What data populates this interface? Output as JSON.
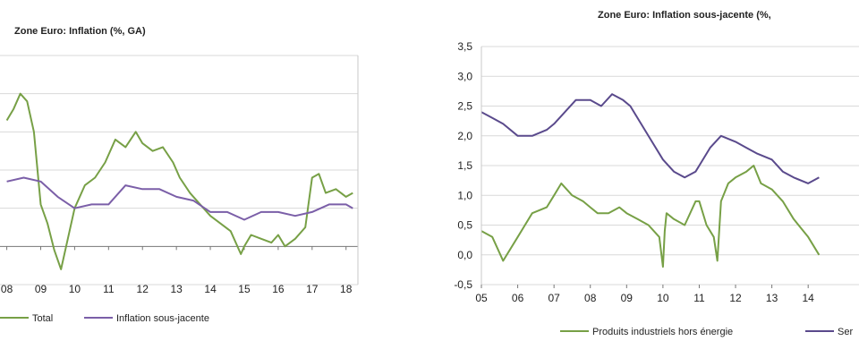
{
  "chart_data": [
    {
      "type": "line",
      "title": "Zone Euro: Inflation (%, GA)",
      "x_tick_labels": [
        "08",
        "09",
        "10",
        "11",
        "12",
        "13",
        "14",
        "15",
        "16",
        "17",
        "18"
      ],
      "ylim": [
        -1,
        5
      ],
      "grid": true,
      "legend_position": "bottom",
      "series": [
        {
          "name": "Total",
          "color": "#77a046",
          "x": [
            2008.0,
            2008.2,
            2008.4,
            2008.6,
            2008.8,
            2009.0,
            2009.2,
            2009.4,
            2009.6,
            2009.8,
            2010.0,
            2010.3,
            2010.6,
            2010.9,
            2011.2,
            2011.5,
            2011.8,
            2012.0,
            2012.3,
            2012.6,
            2012.9,
            2013.1,
            2013.4,
            2013.7,
            2014.0,
            2014.3,
            2014.6,
            2014.9,
            2015.0,
            2015.2,
            2015.5,
            2015.8,
            2016.0,
            2016.2,
            2016.5,
            2016.8,
            2017.0,
            2017.2,
            2017.4,
            2017.7,
            2018.0,
            2018.2
          ],
          "values": [
            3.3,
            3.6,
            4.0,
            3.8,
            3.0,
            1.1,
            0.6,
            -0.1,
            -0.6,
            0.2,
            1.0,
            1.6,
            1.8,
            2.2,
            2.8,
            2.6,
            3.0,
            2.7,
            2.5,
            2.6,
            2.2,
            1.8,
            1.4,
            1.1,
            0.8,
            0.6,
            0.4,
            -0.2,
            0.0,
            0.3,
            0.2,
            0.1,
            0.3,
            0.0,
            0.2,
            0.5,
            1.8,
            1.9,
            1.4,
            1.5,
            1.3,
            1.4
          ]
        },
        {
          "name": "Inflation sous-jacente",
          "color": "#7b5fa8",
          "x": [
            2008.0,
            2008.5,
            2009.0,
            2009.5,
            2010.0,
            2010.5,
            2011.0,
            2011.5,
            2012.0,
            2012.5,
            2013.0,
            2013.5,
            2014.0,
            2014.5,
            2015.0,
            2015.5,
            2016.0,
            2016.5,
            2017.0,
            2017.5,
            2018.0,
            2018.2
          ],
          "values": [
            1.7,
            1.8,
            1.7,
            1.3,
            1.0,
            1.1,
            1.1,
            1.6,
            1.5,
            1.5,
            1.3,
            1.2,
            0.9,
            0.9,
            0.7,
            0.9,
            0.9,
            0.8,
            0.9,
            1.1,
            1.1,
            1.0
          ]
        }
      ]
    },
    {
      "type": "line",
      "title": "Zone Euro: Inflation sous-jacente (%,",
      "x_tick_labels": [
        "05",
        "06",
        "07",
        "08",
        "09",
        "10",
        "11",
        "12",
        "13",
        "14"
      ],
      "y_tick_labels": [
        "3,5",
        "3,0",
        "2,5",
        "2,0",
        "1,5",
        "1,0",
        "0,5",
        "0,0",
        "-0,5"
      ],
      "ylim": [
        -0.5,
        3.5
      ],
      "grid": true,
      "legend_position": "bottom",
      "series": [
        {
          "name": "Produits industriels hors énergie",
          "color": "#77a046",
          "x": [
            2005.0,
            2005.3,
            2005.6,
            2006.0,
            2006.4,
            2006.8,
            2007.0,
            2007.2,
            2007.5,
            2007.8,
            2008.0,
            2008.2,
            2008.5,
            2008.8,
            2009.0,
            2009.3,
            2009.6,
            2009.9,
            2010.0,
            2010.05,
            2010.1,
            2010.3,
            2010.6,
            2010.9,
            2011.0,
            2011.2,
            2011.4,
            2011.5,
            2011.6,
            2011.8,
            2012.0,
            2012.3,
            2012.5,
            2012.7,
            2013.0,
            2013.3,
            2013.6,
            2014.0,
            2014.3
          ],
          "values": [
            0.4,
            0.3,
            -0.1,
            0.3,
            0.7,
            0.8,
            1.0,
            1.2,
            1.0,
            0.9,
            0.8,
            0.7,
            0.7,
            0.8,
            0.7,
            0.6,
            0.5,
            0.3,
            -0.2,
            0.4,
            0.7,
            0.6,
            0.5,
            0.9,
            0.9,
            0.5,
            0.3,
            -0.1,
            0.9,
            1.2,
            1.3,
            1.4,
            1.5,
            1.2,
            1.1,
            0.9,
            0.6,
            0.3,
            0.0
          ]
        },
        {
          "name": "Ser",
          "color": "#5a4a8c",
          "x": [
            2005.0,
            2005.3,
            2005.6,
            2006.0,
            2006.4,
            2006.8,
            2007.0,
            2007.3,
            2007.6,
            2008.0,
            2008.3,
            2008.6,
            2008.9,
            2009.1,
            2009.4,
            2009.7,
            2010.0,
            2010.3,
            2010.6,
            2010.9,
            2011.0,
            2011.3,
            2011.6,
            2012.0,
            2012.3,
            2012.6,
            2013.0,
            2013.3,
            2013.6,
            2014.0,
            2014.3
          ],
          "values": [
            2.4,
            2.3,
            2.2,
            2.0,
            2.0,
            2.1,
            2.2,
            2.4,
            2.6,
            2.6,
            2.5,
            2.7,
            2.6,
            2.5,
            2.2,
            1.9,
            1.6,
            1.4,
            1.3,
            1.4,
            1.5,
            1.8,
            2.0,
            1.9,
            1.8,
            1.7,
            1.6,
            1.4,
            1.3,
            1.2,
            1.3
          ]
        }
      ]
    }
  ]
}
